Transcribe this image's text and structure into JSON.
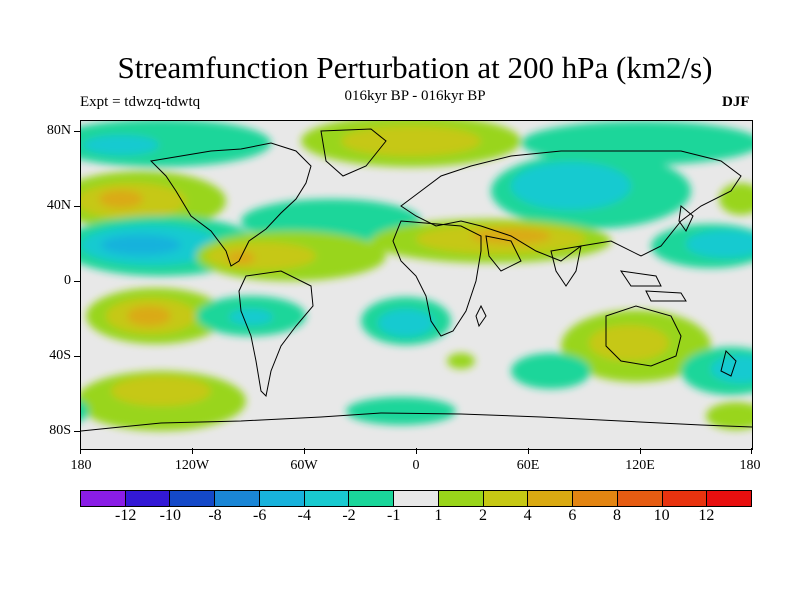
{
  "title": "Streamfunction Perturbation at 200 hPa (km2/s)",
  "subtitle": "016kyr BP - 016kyr BP",
  "experiment": "Expt = tdwzq-tdwtq",
  "season": "DJF",
  "y_axis_labels": [
    "80N",
    "40N",
    "0",
    "40S",
    "80S"
  ],
  "x_axis_labels": [
    "180",
    "120W",
    "60W",
    "0",
    "60E",
    "120E",
    "180"
  ],
  "colorbar": {
    "colors": [
      "#8a1de6",
      "#3319d6",
      "#1449c8",
      "#1a86d6",
      "#18b2dc",
      "#19cad0",
      "#1ad69a",
      "#e8e8e8",
      "#99d51a",
      "#c6c814",
      "#daaa12",
      "#e38512",
      "#e65c12",
      "#e8330f",
      "#e80f0f"
    ],
    "labels": [
      "-12",
      "-10",
      "-8",
      "-6",
      "-4",
      "-2",
      "-1",
      "1",
      "2",
      "4",
      "6",
      "8",
      "10",
      "12"
    ]
  },
  "chart_data": {
    "type": "heatmap",
    "variable": "Streamfunction Perturbation at 200 hPa",
    "units": "km2/s",
    "lon_range": [
      -180,
      180
    ],
    "lat_range": [
      -90,
      90
    ],
    "contour_levels": [
      -12,
      -10,
      -8,
      -6,
      -4,
      -2,
      -1,
      1,
      2,
      4,
      6,
      8,
      10,
      12
    ]
  }
}
